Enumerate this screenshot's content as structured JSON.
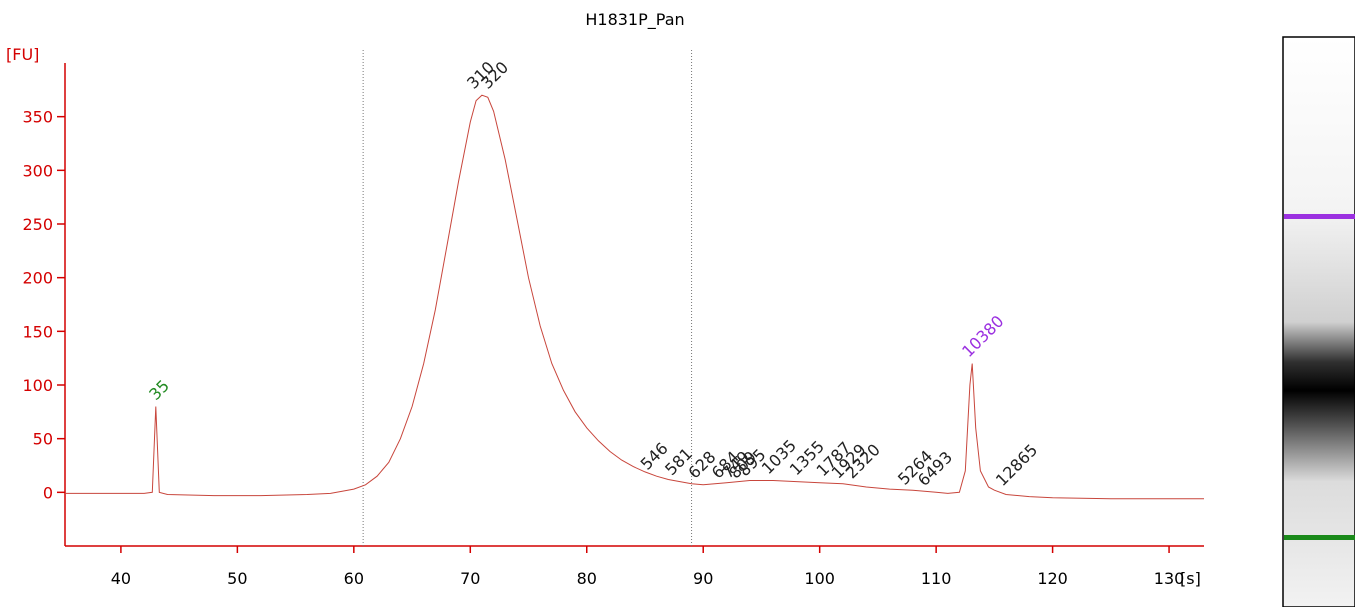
{
  "chart_data": {
    "type": "line",
    "title": "H1831P_Pan",
    "x_label": "[s]",
    "y_label": "[FU]",
    "xlim": [
      35.2,
      133
    ],
    "ylim": [
      -50,
      400
    ],
    "xticks": [
      40,
      50,
      60,
      70,
      80,
      90,
      100,
      110,
      120,
      130
    ],
    "yticks": [
      0,
      50,
      100,
      150,
      200,
      250,
      300,
      350
    ],
    "axis_color": "#d40000",
    "series": [
      {
        "name": "H1831P_Pan",
        "color": "#c8463c",
        "x": [
          35.2,
          38,
          40,
          42,
          42.7,
          43,
          43.3,
          44,
          48,
          52,
          56,
          58,
          59,
          60,
          61,
          62,
          63,
          64,
          65,
          66,
          67,
          68,
          69,
          70,
          70.5,
          71,
          71.5,
          72,
          73,
          74,
          75,
          76,
          77,
          78,
          79,
          80,
          81,
          82,
          83,
          84,
          85,
          86,
          87,
          88,
          89,
          90,
          92,
          94,
          96,
          98,
          100,
          102,
          104,
          106,
          108,
          110,
          111,
          112,
          112.5,
          112.9,
          113.1,
          113.4,
          113.8,
          114.5,
          115,
          116,
          118,
          120,
          125,
          130,
          133
        ],
        "values": [
          -1,
          -1,
          -1,
          -1,
          0,
          80,
          0,
          -2,
          -3,
          -3,
          -2,
          -1,
          1,
          3,
          7,
          15,
          28,
          50,
          80,
          120,
          170,
          230,
          290,
          345,
          365,
          370,
          368,
          355,
          310,
          255,
          200,
          155,
          120,
          95,
          75,
          60,
          48,
          38,
          30,
          24,
          19,
          15,
          12,
          10,
          8,
          7,
          9,
          11,
          11,
          10,
          9,
          8,
          5,
          3,
          2,
          0,
          -1,
          0,
          20,
          100,
          120,
          60,
          20,
          5,
          2,
          -2,
          -4,
          -5,
          -6,
          -6,
          -6
        ]
      }
    ],
    "region_lines": [
      60.8,
      89
    ],
    "annotations": [
      {
        "label": "35",
        "x": 43,
        "y": 85,
        "color": "#228b22"
      },
      {
        "label": "310",
        "x": 70.3,
        "y": 375,
        "color": "#222222"
      },
      {
        "label": "320",
        "x": 71.5,
        "y": 375,
        "color": "#222222"
      },
      {
        "label": "546",
        "x": 85.2,
        "y": 20,
        "color": "#222222"
      },
      {
        "label": "581",
        "x": 87.3,
        "y": 15,
        "color": "#222222"
      },
      {
        "label": "628",
        "x": 89.3,
        "y": 12,
        "color": "#222222"
      },
      {
        "label": "684",
        "x": 91.3,
        "y": 12,
        "color": "#222222"
      },
      {
        "label": "749",
        "x": 92.2,
        "y": 12,
        "color": "#222222"
      },
      {
        "label": "809",
        "x": 92.8,
        "y": 12,
        "color": "#222222"
      },
      {
        "label": "895",
        "x": 93.6,
        "y": 14,
        "color": "#222222"
      },
      {
        "label": "1035",
        "x": 95.6,
        "y": 16,
        "color": "#222222"
      },
      {
        "label": "1355",
        "x": 98,
        "y": 15,
        "color": "#222222"
      },
      {
        "label": "1787",
        "x": 100.3,
        "y": 14,
        "color": "#222222"
      },
      {
        "label": "1929",
        "x": 101.6,
        "y": 12,
        "color": "#222222"
      },
      {
        "label": "2320",
        "x": 102.8,
        "y": 12,
        "color": "#222222"
      },
      {
        "label": "5264",
        "x": 107.3,
        "y": 6,
        "color": "#222222"
      },
      {
        "label": "6493",
        "x": 109,
        "y": 5,
        "color": "#222222"
      },
      {
        "label": "10380",
        "x": 112.8,
        "y": 125,
        "color": "#9b30e0"
      },
      {
        "label": "12865",
        "x": 115.7,
        "y": 5,
        "color": "#222222"
      }
    ]
  }
}
